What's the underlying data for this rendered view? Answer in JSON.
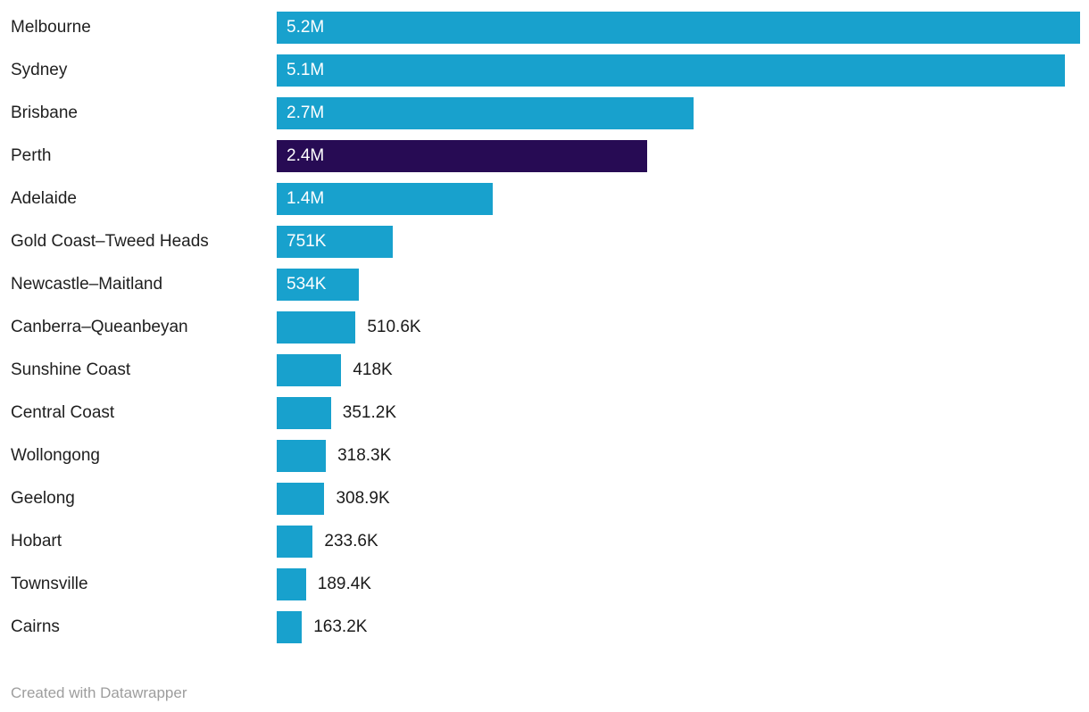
{
  "chart_data": {
    "type": "bar",
    "orientation": "horizontal",
    "title": "",
    "xlabel": "",
    "ylabel": "",
    "xlim": [
      0,
      5200000
    ],
    "grid": false,
    "legend": false,
    "colors": {
      "bar": "#18a1cd",
      "highlight": "#270b54",
      "inside_label": "#ffffff",
      "outside_label": "#1a1a1a"
    },
    "bars": [
      {
        "label": "Melbourne",
        "value": 5200000,
        "display": "5.2M",
        "label_position": "inside",
        "highlight": false
      },
      {
        "label": "Sydney",
        "value": 5100000,
        "display": "5.1M",
        "label_position": "inside",
        "highlight": false
      },
      {
        "label": "Brisbane",
        "value": 2700000,
        "display": "2.7M",
        "label_position": "inside",
        "highlight": false
      },
      {
        "label": "Perth",
        "value": 2400000,
        "display": "2.4M",
        "label_position": "inside",
        "highlight": true
      },
      {
        "label": "Adelaide",
        "value": 1400000,
        "display": "1.4M",
        "label_position": "inside",
        "highlight": false
      },
      {
        "label": "Gold Coast–Tweed Heads",
        "value": 751000,
        "display": "751K",
        "label_position": "inside",
        "highlight": false
      },
      {
        "label": "Newcastle–Maitland",
        "value": 534000,
        "display": "534K",
        "label_position": "inside",
        "highlight": false
      },
      {
        "label": "Canberra–Queanbeyan",
        "value": 510600,
        "display": "510.6K",
        "label_position": "outside",
        "highlight": false
      },
      {
        "label": "Sunshine Coast",
        "value": 418000,
        "display": "418K",
        "label_position": "outside",
        "highlight": false
      },
      {
        "label": "Central Coast",
        "value": 351200,
        "display": "351.2K",
        "label_position": "outside",
        "highlight": false
      },
      {
        "label": "Wollongong",
        "value": 318300,
        "display": "318.3K",
        "label_position": "outside",
        "highlight": false
      },
      {
        "label": "Geelong",
        "value": 308900,
        "display": "308.9K",
        "label_position": "outside",
        "highlight": false
      },
      {
        "label": "Hobart",
        "value": 233600,
        "display": "233.6K",
        "label_position": "outside",
        "highlight": false
      },
      {
        "label": "Townsville",
        "value": 189400,
        "display": "189.4K",
        "label_position": "outside",
        "highlight": false
      },
      {
        "label": "Cairns",
        "value": 163200,
        "display": "163.2K",
        "label_position": "outside",
        "highlight": false
      }
    ]
  },
  "footer": {
    "credit": "Created with Datawrapper"
  }
}
